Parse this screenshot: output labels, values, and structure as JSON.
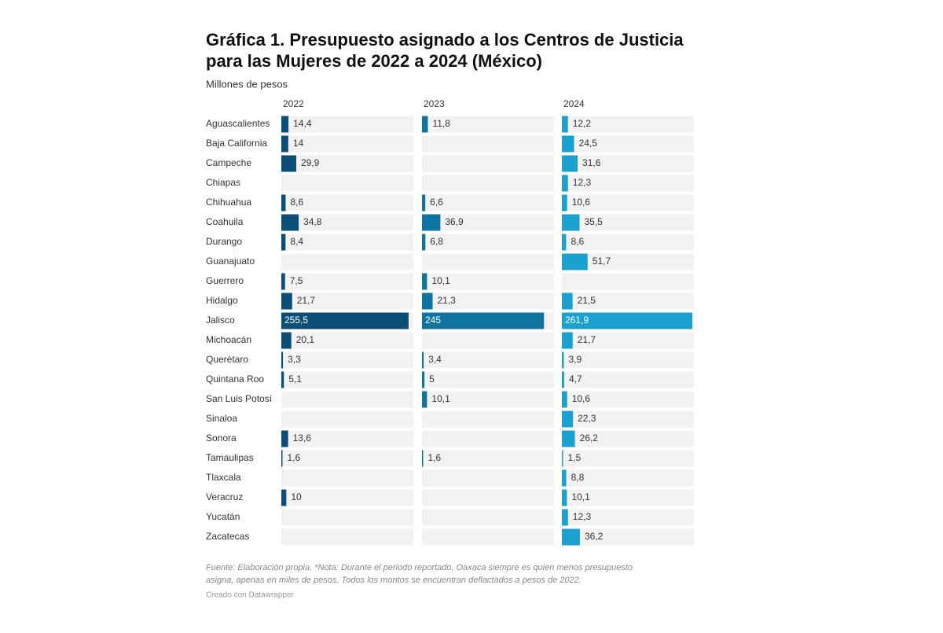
{
  "chart_data": {
    "type": "bar",
    "title": "Gráfica 1. Presupuesto asignado a los Centros de Justicia para las Mujeres de 2022 a 2024 (México)",
    "subtitle": "Millones de pesos",
    "categories": [
      "Aguascalientes",
      "Baja California",
      "Campeche",
      "Chiapas",
      "Chihuahua",
      "Coahuila",
      "Durango",
      "Guanajuato",
      "Guerrero",
      "Hidalgo",
      "Jalisco",
      "Michoacán",
      "Querétaro",
      "Quintana Roo",
      "San Luis Potosí",
      "Sinaloa",
      "Sonora",
      "Tamaulipas",
      "Tlaxcala",
      "Veracruz",
      "Yucatán",
      "Zacatecas"
    ],
    "series": [
      {
        "name": "2022",
        "color": "#0b4f78",
        "values": [
          14.4,
          14,
          29.9,
          null,
          8.6,
          34.8,
          8.4,
          null,
          7.5,
          21.7,
          255.5,
          20.1,
          3.3,
          5.1,
          null,
          null,
          13.6,
          1.6,
          null,
          10,
          null,
          null
        ],
        "value_labels": [
          "14,4",
          "14",
          "29,9",
          null,
          "8,6",
          "34,8",
          "8,4",
          null,
          "7,5",
          "21,7",
          "255,5",
          "20,1",
          "3,3",
          "5,1",
          null,
          null,
          "13,6",
          "1,6",
          null,
          "10",
          null,
          null
        ]
      },
      {
        "name": "2023",
        "color": "#0f74a0",
        "values": [
          11.8,
          null,
          null,
          null,
          6.6,
          36.9,
          6.8,
          null,
          10.1,
          21.3,
          245,
          null,
          3.4,
          5,
          10.1,
          null,
          null,
          1.6,
          null,
          null,
          null,
          null
        ],
        "value_labels": [
          "11,8",
          null,
          null,
          null,
          "6,6",
          "36,9",
          "6,8",
          null,
          "10,1",
          "21,3",
          "245",
          null,
          "3,4",
          "5",
          "10,1",
          null,
          null,
          "1,6",
          null,
          null,
          null,
          null
        ]
      },
      {
        "name": "2024",
        "color": "#1ba1cf",
        "values": [
          12.2,
          24.5,
          31.6,
          12.3,
          10.6,
          35.5,
          8.6,
          51.7,
          null,
          21.5,
          261.9,
          21.7,
          3.9,
          4.7,
          10.6,
          22.3,
          26.2,
          1.5,
          8.8,
          10.1,
          12.3,
          36.2
        ],
        "value_labels": [
          "12,2",
          "24,5",
          "31,6",
          "12,3",
          "10,6",
          "35,5",
          "8,6",
          "51,7",
          null,
          "21,5",
          "261,9",
          "21,7",
          "3,9",
          "4,7",
          "10,6",
          "22,3",
          "26,2",
          "1,5",
          "8,8",
          "10,1",
          "12,3",
          "36,2"
        ]
      }
    ],
    "notes": [
      "Fuente: Elaboración propia. *Nota: Durante el periodo reportado, Oaxaca siempre es quien menos presupuesto",
      "asigna, apenas en miles de pesos. Todos los montos se encuentran deflactados a pesos de 2022."
    ],
    "credit": "Creado con Datawrapper"
  }
}
